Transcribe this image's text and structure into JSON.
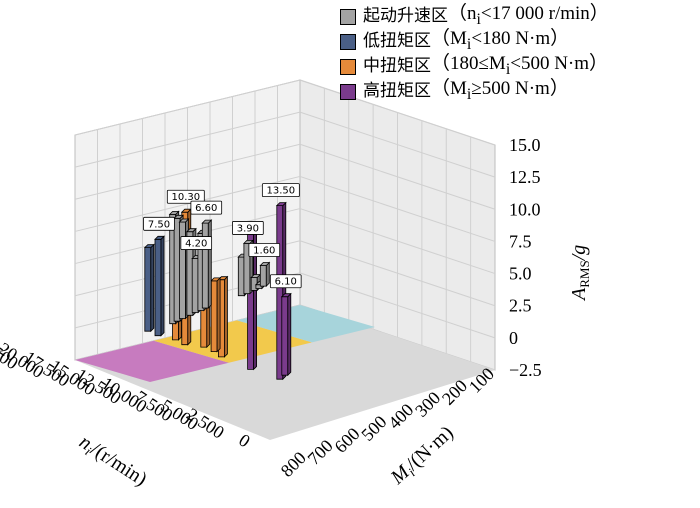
{
  "chart_data": {
    "type": "bar",
    "zlabel": "A_RMS/g",
    "xlabel": "n_i/(r/min)",
    "ylabel": "M_i/(N·m)",
    "z_ticks": [
      "15.0",
      "12.5",
      "10.0",
      "7.5",
      "5.0",
      "2.5",
      "0",
      "−2.5"
    ],
    "z_tick_values": [
      15.0,
      12.5,
      10.0,
      7.5,
      5.0,
      2.5,
      0,
      -2.5
    ],
    "zlim": [
      -2.5,
      15.0
    ],
    "x_ticks": [
      "22 500",
      "20 000",
      "17 500",
      "15 000",
      "12 500",
      "10 000",
      "7 500",
      "5 000",
      "2 500",
      "0"
    ],
    "y_ticks": [
      "100",
      "200",
      "300",
      "400",
      "500",
      "600",
      "700",
      "800"
    ],
    "legend": [
      {
        "name": "起动升速区",
        "cond": "（n",
        "sub": "i",
        "cond2": "<17 000 r/min）",
        "color": "#a3a3a3"
      },
      {
        "name": "低扭矩区",
        "cond": "（M",
        "sub": "i",
        "cond2": "<180 N·m）",
        "color": "#4a5f86"
      },
      {
        "name": "中扭矩区",
        "cond": "（180≤M",
        "sub": "i",
        "cond2": "<500 N·m）",
        "color": "#e58a3a"
      },
      {
        "name": "高扭矩区",
        "cond": "（M",
        "sub": "i",
        "cond2": "≥500 N·m）",
        "color": "#7a3b8c"
      }
    ],
    "regions": [
      {
        "name": "high",
        "color": "#c77bbf"
      },
      {
        "name": "mid",
        "color": "#f2c94c"
      },
      {
        "name": "low",
        "color": "#a7d4db"
      },
      {
        "name": "startup",
        "color": "#d9d9d9"
      }
    ],
    "bars": [
      {
        "n": 20000,
        "m": 720,
        "value": 13.5,
        "group": 3,
        "label": "13.50"
      },
      {
        "n": 19000,
        "m": 700,
        "value": 6.1,
        "group": 3,
        "label": "6.10"
      },
      {
        "n": 20000,
        "m": 600,
        "value": 10.5,
        "group": 3,
        "label": ""
      },
      {
        "n": 19500,
        "m": 460,
        "value": 6.0,
        "group": 2,
        "label": ""
      },
      {
        "n": 19000,
        "m": 410,
        "value": 5.5,
        "group": 2,
        "label": ""
      },
      {
        "n": 18800,
        "m": 360,
        "value": 3.5,
        "group": 2,
        "label": ""
      },
      {
        "n": 19500,
        "m": 310,
        "value": 10.3,
        "group": 2,
        "label": "10.30"
      },
      {
        "n": 19200,
        "m": 260,
        "value": 3.0,
        "group": 2,
        "label": ""
      },
      {
        "n": 19500,
        "m": 200,
        "value": 7.5,
        "group": 1,
        "label": "7.50"
      },
      {
        "n": 19300,
        "m": 150,
        "value": 6.5,
        "group": 1,
        "label": ""
      },
      {
        "n": 16500,
        "m": 140,
        "value": 8.5,
        "group": 0,
        "label": ""
      },
      {
        "n": 15800,
        "m": 130,
        "value": 8.0,
        "group": 0,
        "label": ""
      },
      {
        "n": 15000,
        "m": 120,
        "value": 7.5,
        "group": 0,
        "label": ""
      },
      {
        "n": 14000,
        "m": 110,
        "value": 6.5,
        "group": 0,
        "label": ""
      },
      {
        "n": 13200,
        "m": 100,
        "value": 4.2,
        "group": 0,
        "label": "4.20"
      },
      {
        "n": 12500,
        "m": 95,
        "value": 6.0,
        "group": 0,
        "label": ""
      },
      {
        "n": 11800,
        "m": 85,
        "value": 6.6,
        "group": 0,
        "label": "6.60"
      },
      {
        "n": 7500,
        "m": 60,
        "value": 3.0,
        "group": 0,
        "label": ""
      },
      {
        "n": 6800,
        "m": 55,
        "value": 3.9,
        "group": 0,
        "label": "3.90"
      },
      {
        "n": 5800,
        "m": 45,
        "value": 1.0,
        "group": 0,
        "label": ""
      },
      {
        "n": 5200,
        "m": 40,
        "value": 0.3,
        "group": 0,
        "label": ""
      },
      {
        "n": 4500,
        "m": 30,
        "value": 1.6,
        "group": 0,
        "label": "1.60"
      }
    ]
  }
}
